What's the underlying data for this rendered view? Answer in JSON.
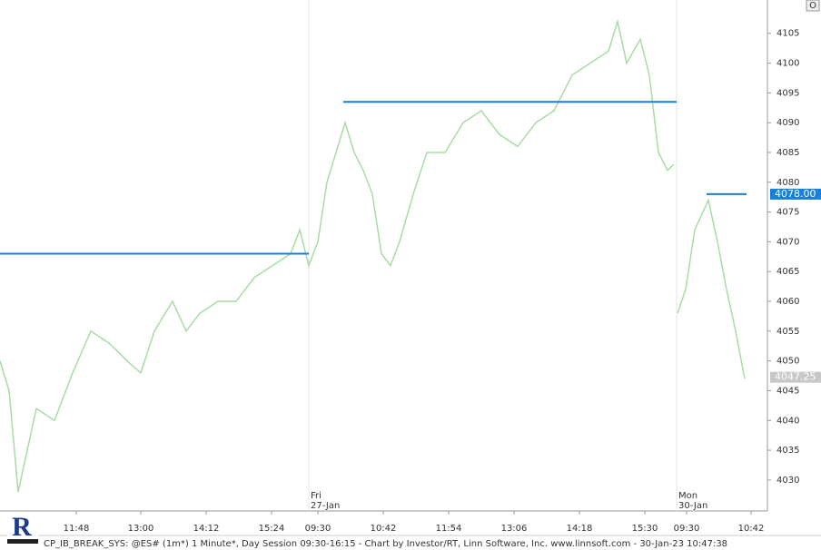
{
  "chart_data": {
    "type": "line",
    "footer": "CP_IB_BREAK_SYS: @ES# (1m*) 1 Minute*, Day Session 09:30-16:15 - Chart by Investor/RT, Linn Software, Inc. www.linnsoft.com - 30-Jan-23 10:47:38",
    "button": "O",
    "xlim": [
      0,
      845
    ],
    "ylim": [
      4024.8,
      4110.6
    ],
    "yticks": [
      4030,
      4035,
      4040,
      4045,
      4050,
      4055,
      4060,
      4065,
      4070,
      4075,
      4080,
      4085,
      4090,
      4095,
      4100,
      4105
    ],
    "xticks": [
      {
        "value": 84,
        "label": "11:48"
      },
      {
        "value": 155,
        "label": "13:00"
      },
      {
        "value": 227,
        "label": "14:12"
      },
      {
        "value": 299,
        "label": "15:24"
      },
      {
        "value": 350,
        "label": "09:30"
      },
      {
        "value": 422,
        "label": "10:42"
      },
      {
        "value": 494,
        "label": "11:54"
      },
      {
        "value": 566,
        "label": "13:06"
      },
      {
        "value": 638,
        "label": "14:18"
      },
      {
        "value": 710,
        "label": "15:30"
      },
      {
        "value": 756,
        "label": "09:30"
      },
      {
        "value": 827,
        "label": "10:42"
      }
    ],
    "sessions": [
      {
        "day": "Fri",
        "date": "27-Jan",
        "x": 340
      },
      {
        "day": "Mon",
        "date": "30-Jan",
        "x": 745
      }
    ],
    "series": [
      {
        "name": "@ES#",
        "color": "#a8dca4",
        "x": [
          0,
          10,
          20,
          40,
          60,
          80,
          100,
          120,
          140,
          155,
          170,
          190,
          205,
          220,
          240,
          260,
          280,
          300,
          320,
          330,
          340,
          350,
          360,
          370,
          380,
          390,
          400,
          410,
          420,
          430,
          440,
          455,
          470,
          490,
          510,
          530,
          550,
          570,
          590,
          610,
          630,
          650,
          670,
          680,
          690,
          705,
          715,
          725,
          735,
          742,
          744,
          746,
          755,
          765,
          780,
          790,
          800,
          810,
          820
        ],
        "values": [
          4050,
          4045,
          4028,
          4042,
          4040,
          4048,
          4055,
          4053,
          4050,
          4048,
          4055,
          4060,
          4055,
          4058,
          4060,
          4060,
          4064,
          4066,
          4068,
          4072,
          4066,
          4070,
          4080,
          4085,
          4090,
          4085,
          4082,
          4078,
          4068,
          4066,
          4070,
          4078,
          4085,
          4085,
          4090,
          4092,
          4088,
          4086,
          4090,
          4092,
          4098,
          4100,
          4102,
          4107,
          4100,
          4104,
          4098,
          4085,
          4082,
          4083,
          null,
          4058,
          4062,
          4072,
          4077,
          4070,
          4062,
          4055,
          4047
        ]
      }
    ],
    "levels": [
      {
        "x0": 0,
        "x1": 340,
        "value": 4068,
        "color": "#1a7fd6"
      },
      {
        "x0": 378,
        "x1": 745,
        "value": 4093.5,
        "color": "#1a7fd6"
      },
      {
        "x0": 778,
        "x1": 822,
        "value": 4078,
        "color": "#1a7fd6"
      }
    ],
    "price_labels": [
      {
        "value": 4078,
        "label": "4078.00",
        "color": "#1a7fd6"
      },
      {
        "value": 4047.25,
        "label": "4047.25",
        "color": "#c8c8c8"
      }
    ]
  }
}
